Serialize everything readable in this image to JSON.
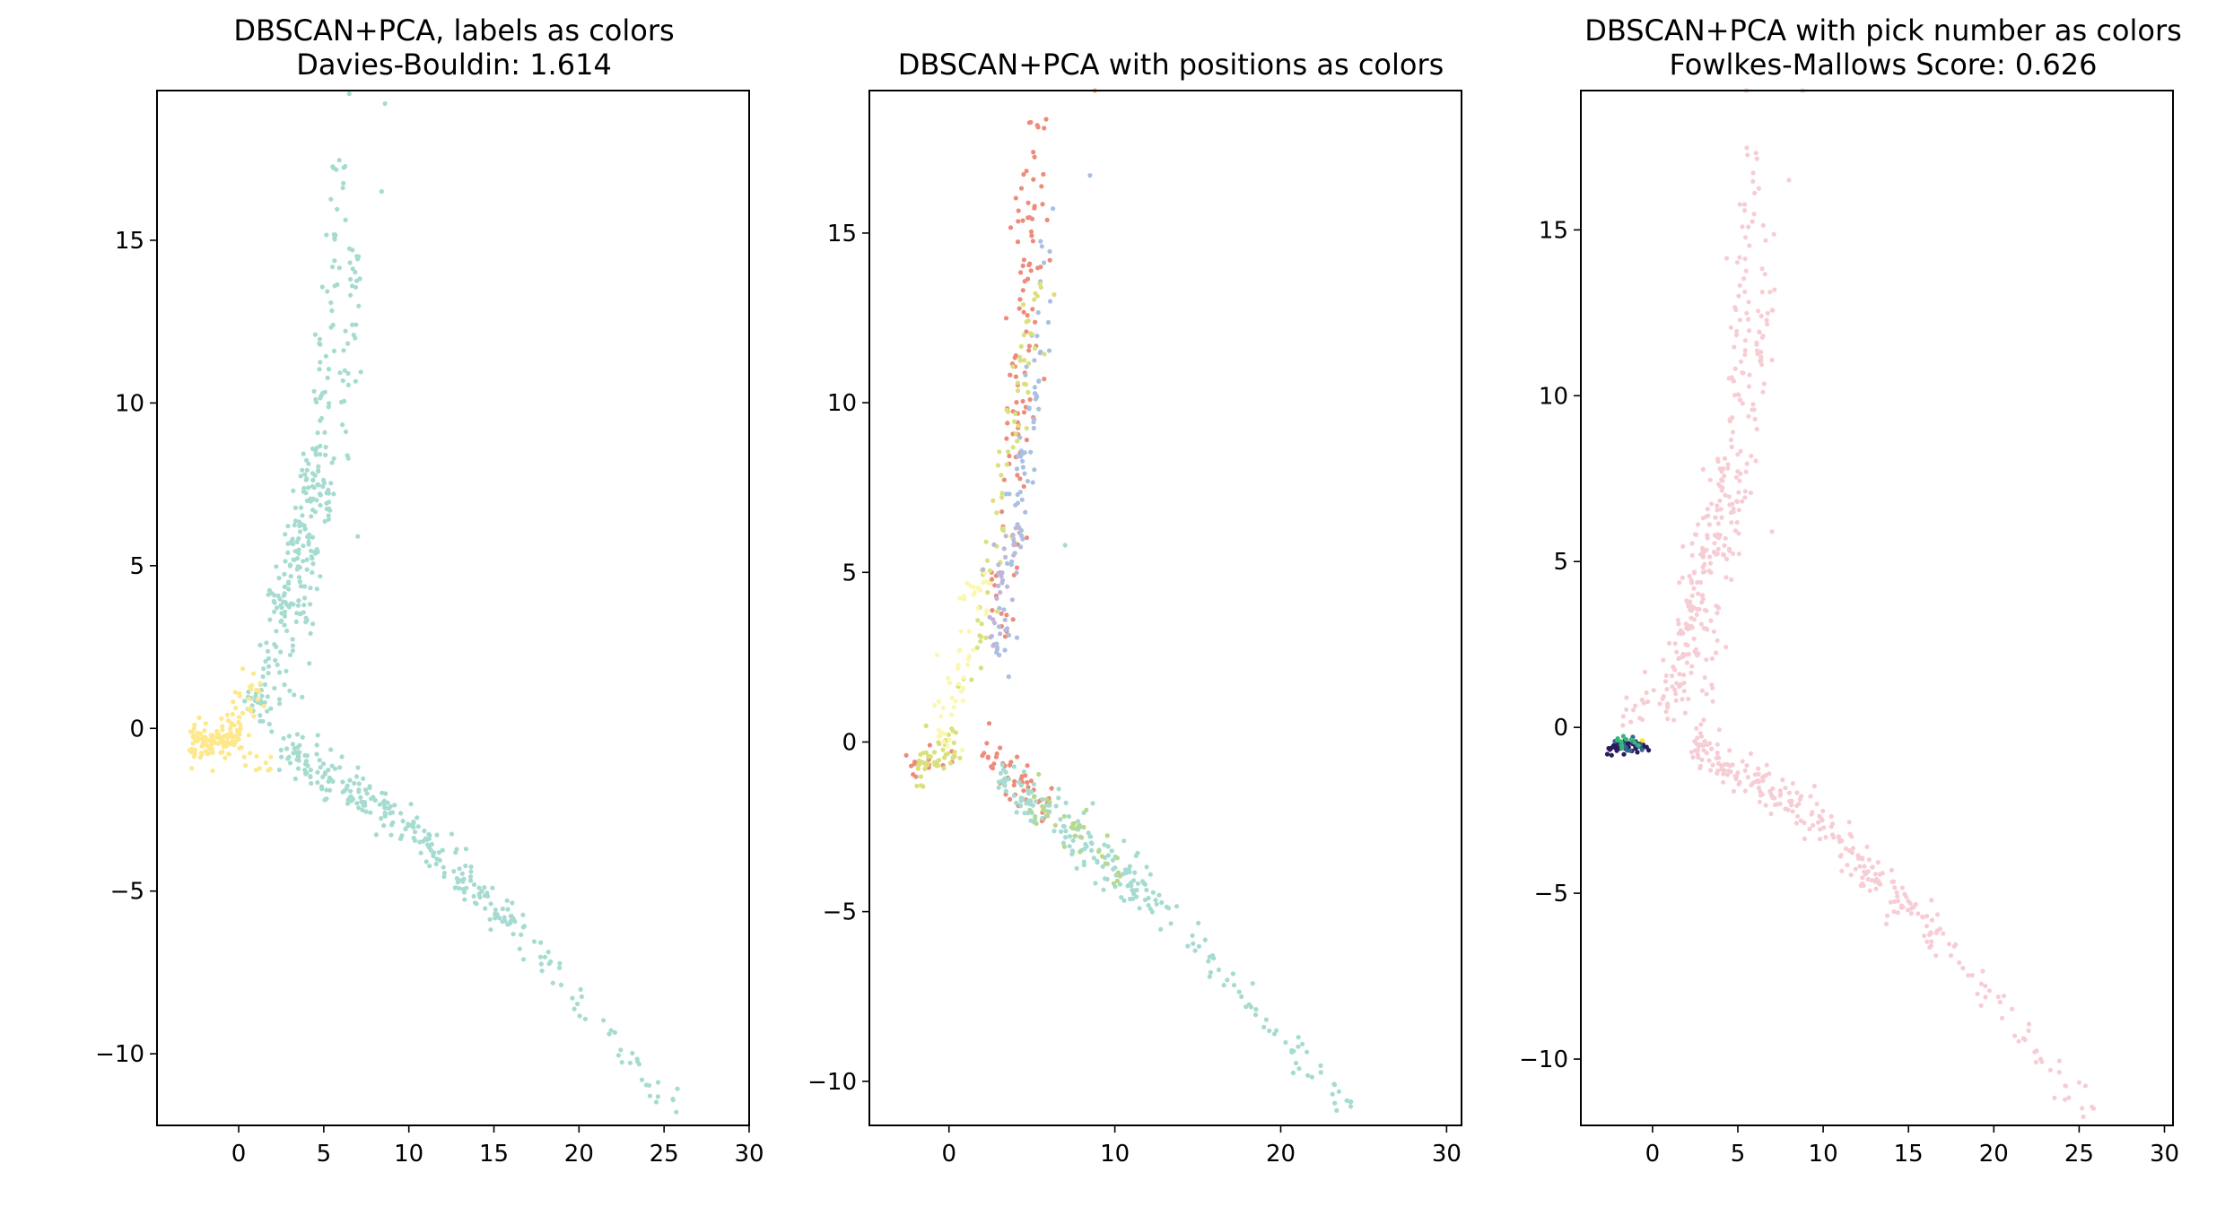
{
  "chart_data": [
    {
      "type": "scatter",
      "title": "DBSCAN+PCA, labels as colors",
      "subtitle": "Davies-Bouldin: 1.614",
      "xlabel": "",
      "ylabel": "",
      "xlim": [
        -4.8,
        30
      ],
      "ylim": [
        -12.2,
        19.6
      ],
      "xticks": [
        0,
        5,
        10,
        15,
        20,
        25,
        30
      ],
      "yticks": [
        -10,
        -5,
        0,
        5,
        10,
        15
      ],
      "grid": false,
      "legend": "none",
      "series": [
        {
          "color": "#a5dbd0",
          "segments": [
            {
              "from": [
                1.0,
                0.3
              ],
              "to": [
                4.5,
                8.0
              ],
              "count": 170,
              "spread": 0.5
            },
            {
              "from": [
                4.5,
                8.0
              ],
              "to": [
                6.0,
                17.5
              ],
              "count": 60,
              "spread": 0.35
            },
            {
              "from": [
                3.0,
                1.0
              ],
              "to": [
                6.2,
                10.5
              ],
              "count": 60,
              "spread": 0.35
            },
            {
              "from": [
                6.2,
                10.5
              ],
              "to": [
                7.0,
                15.0
              ],
              "count": 30,
              "spread": 0.3
            },
            {
              "from": [
                2.5,
                -0.5
              ],
              "to": [
                9.0,
                -2.6
              ],
              "count": 120,
              "spread": 0.35
            },
            {
              "from": [
                9.0,
                -2.6
              ],
              "to": [
                17.0,
                -6.4
              ],
              "count": 120,
              "spread": 0.35
            },
            {
              "from": [
                17.0,
                -6.4
              ],
              "to": [
                26.0,
                -11.9
              ],
              "count": 45,
              "spread": 0.25
            }
          ]
        },
        {
          "color": "#fde88c",
          "segments": [
            {
              "from": [
                -2.8,
                -0.4
              ],
              "to": [
                0.0,
                -0.3
              ],
              "count": 110,
              "spread": 0.3
            },
            {
              "from": [
                -0.5,
                0.0
              ],
              "to": [
                1.5,
                1.6
              ],
              "count": 30,
              "spread": 0.35
            },
            {
              "from": [
                0.0,
                -0.6
              ],
              "to": [
                1.8,
                -1.2
              ],
              "count": 12,
              "spread": 0.3
            }
          ]
        }
      ],
      "outliers": [
        {
          "x": 8.4,
          "y": 16.5,
          "color": "#a5dbd0"
        },
        {
          "x": 8.6,
          "y": 19.2,
          "color": "#a5dbd0"
        },
        {
          "x": 7.0,
          "y": 5.9,
          "color": "#a5dbd0"
        },
        {
          "x": 6.5,
          "y": 19.5,
          "color": "#a5dbd0"
        }
      ]
    },
    {
      "type": "scatter",
      "title": "DBSCAN+PCA with positions as colors",
      "subtitle": "",
      "xlabel": "",
      "ylabel": "",
      "xlim": [
        -4.8,
        30.9
      ],
      "ylim": [
        -11.3,
        19.2
      ],
      "xticks": [
        0,
        10,
        20,
        30
      ],
      "yticks": [
        -10,
        -5,
        0,
        5,
        10,
        15
      ],
      "grid": false,
      "legend": "none",
      "series": [
        {
          "color": "#ee8b7a",
          "segments": [
            {
              "from": [
                3.0,
                3.0
              ],
              "to": [
                5.5,
                18.5
              ],
              "count": 110,
              "spread": 0.45
            },
            {
              "from": [
                2.0,
                -0.3
              ],
              "to": [
                6.0,
                -2.0
              ],
              "count": 45,
              "spread": 0.35
            },
            {
              "from": [
                -2.5,
                -0.8
              ],
              "to": [
                0.5,
                -0.5
              ],
              "count": 15,
              "spread": 0.3
            }
          ]
        },
        {
          "color": "#a9c0e2",
          "segments": [
            {
              "from": [
                3.0,
                2.0
              ],
              "to": [
                5.5,
                12.0
              ],
              "count": 70,
              "spread": 0.35
            },
            {
              "from": [
                5.5,
                12.0
              ],
              "to": [
                6.0,
                16.0
              ],
              "count": 10,
              "spread": 0.25
            }
          ]
        },
        {
          "color": "#d9e07c",
          "segments": [
            {
              "from": [
                1.0,
                1.5
              ],
              "to": [
                5.5,
                13.5
              ],
              "count": 70,
              "spread": 0.4
            },
            {
              "from": [
                -2.0,
                -0.8
              ],
              "to": [
                0.5,
                0.0
              ],
              "count": 50,
              "spread": 0.35
            }
          ]
        },
        {
          "color": "#fbf7b2",
          "segments": [
            {
              "from": [
                -0.5,
                0.0
              ],
              "to": [
                2.0,
                5.0
              ],
              "count": 55,
              "spread": 0.45
            }
          ]
        },
        {
          "color": "#bfb6d8",
          "segments": [
            {
              "from": [
                2.5,
                2.5
              ],
              "to": [
                4.0,
                6.5
              ],
              "count": 30,
              "spread": 0.35
            }
          ]
        },
        {
          "color": "#a5dbd0",
          "segments": [
            {
              "from": [
                3.0,
                -1.0
              ],
              "to": [
                12.0,
                -4.5
              ],
              "count": 150,
              "spread": 0.35
            },
            {
              "from": [
                12.0,
                -4.5
              ],
              "to": [
                24.5,
                -11.0
              ],
              "count": 70,
              "spread": 0.3
            }
          ]
        },
        {
          "color": "#b7d98b",
          "segments": [
            {
              "from": [
                5.0,
                -1.5
              ],
              "to": [
                11.0,
                -4.0
              ],
              "count": 35,
              "spread": 0.35
            }
          ]
        }
      ],
      "outliers": [
        {
          "x": 7.0,
          "y": 5.8,
          "color": "#a5dbd0"
        },
        {
          "x": 8.5,
          "y": 16.7,
          "color": "#a9c0e2"
        },
        {
          "x": 8.8,
          "y": 19.2,
          "color": "#fdb462"
        }
      ]
    },
    {
      "type": "scatter",
      "title": "DBSCAN+PCA with pick number as colors",
      "subtitle": "Fowlkes-Mallows Score: 0.626",
      "xlabel": "",
      "ylabel": "",
      "xlim": [
        -4.2,
        30.5
      ],
      "ylim": [
        -12.0,
        19.2
      ],
      "xticks": [
        0,
        5,
        10,
        15,
        20,
        25,
        30
      ],
      "yticks": [
        -10,
        -5,
        0,
        5,
        10,
        15
      ],
      "grid": false,
      "legend": "none",
      "series": [
        {
          "color": "#f7cdd4",
          "segments": [
            {
              "from": [
                1.0,
                0.3
              ],
              "to": [
                4.5,
                8.0
              ],
              "count": 170,
              "spread": 0.5
            },
            {
              "from": [
                4.5,
                8.0
              ],
              "to": [
                6.0,
                17.5
              ],
              "count": 60,
              "spread": 0.35
            },
            {
              "from": [
                3.0,
                1.0
              ],
              "to": [
                6.2,
                10.5
              ],
              "count": 60,
              "spread": 0.35
            },
            {
              "from": [
                6.2,
                10.5
              ],
              "to": [
                7.0,
                15.0
              ],
              "count": 30,
              "spread": 0.3
            },
            {
              "from": [
                2.5,
                -0.5
              ],
              "to": [
                9.0,
                -2.6
              ],
              "count": 120,
              "spread": 0.35
            },
            {
              "from": [
                9.0,
                -2.6
              ],
              "to": [
                17.0,
                -6.4
              ],
              "count": 120,
              "spread": 0.35
            },
            {
              "from": [
                17.0,
                -6.4
              ],
              "to": [
                26.0,
                -11.9
              ],
              "count": 45,
              "spread": 0.25
            },
            {
              "from": [
                -1.5,
                -0.2
              ],
              "to": [
                0.0,
                1.2
              ],
              "count": 15,
              "spread": 0.3
            }
          ]
        },
        {
          "color": "#2d1a5e",
          "segments": [
            {
              "from": [
                -2.6,
                -0.6
              ],
              "to": [
                -0.2,
                -0.6
              ],
              "count": 45,
              "spread": 0.12
            }
          ]
        },
        {
          "color": "#31688e",
          "segments": [
            {
              "from": [
                -2.2,
                -0.5
              ],
              "to": [
                -0.5,
                -0.5
              ],
              "count": 15,
              "spread": 0.12
            }
          ]
        },
        {
          "color": "#35b779",
          "segments": [
            {
              "from": [
                -2.0,
                -0.45
              ],
              "to": [
                -0.8,
                -0.45
              ],
              "count": 10,
              "spread": 0.12
            }
          ]
        }
      ],
      "outliers": [
        {
          "x": 8.0,
          "y": 16.5,
          "color": "#f7cdd4"
        },
        {
          "x": 8.8,
          "y": 19.2,
          "color": "#f7cdd4"
        },
        {
          "x": 7.0,
          "y": 5.9,
          "color": "#f7cdd4"
        },
        {
          "x": 5.5,
          "y": 19.2,
          "color": "#f7cdd4"
        },
        {
          "x": -0.6,
          "y": -0.4,
          "color": "#fde725"
        }
      ]
    }
  ]
}
